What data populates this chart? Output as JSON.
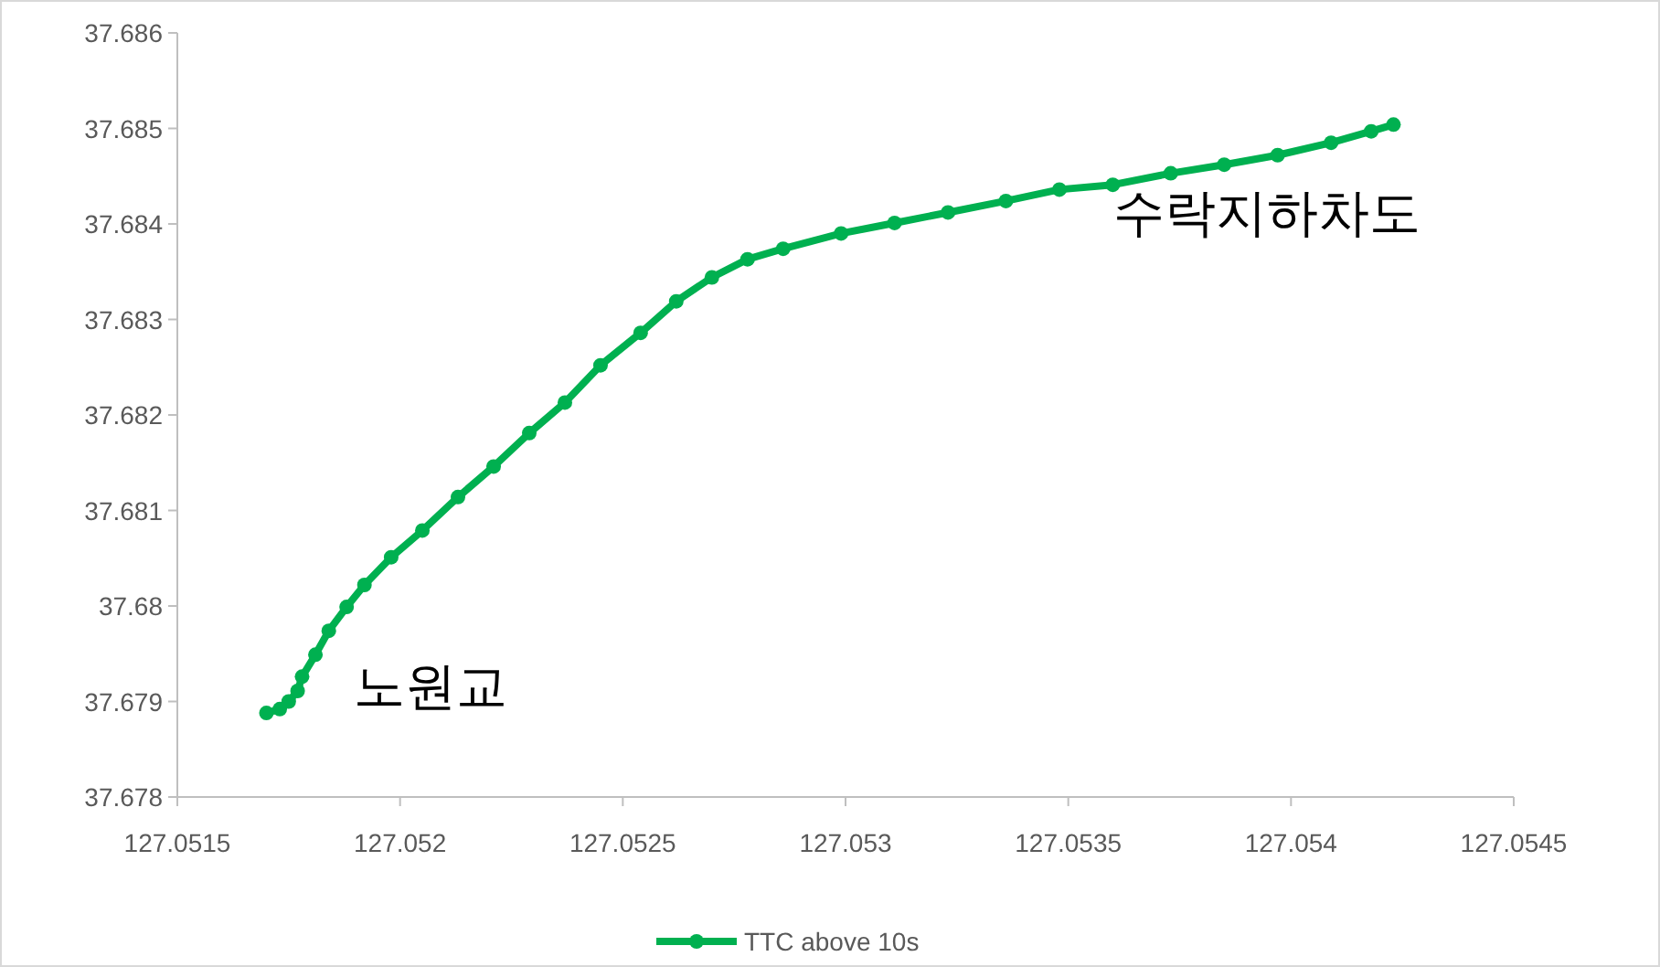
{
  "chart_data": {
    "type": "line",
    "x": [
      127.0517,
      127.05173,
      127.05175,
      127.05177,
      127.05178,
      127.05181,
      127.05184,
      127.05188,
      127.05192,
      127.05198,
      127.05205,
      127.05213,
      127.05221,
      127.05229,
      127.05237,
      127.05245,
      127.05254,
      127.05262,
      127.0527,
      127.05278,
      127.05286,
      127.05299,
      127.05311,
      127.05323,
      127.05336,
      127.05348,
      127.0536,
      127.05373,
      127.05385,
      127.05397,
      127.05409,
      127.05418,
      127.05423
    ],
    "series": [
      {
        "name": "TTC above 10s",
        "color": "#00b050",
        "values": [
          37.67888,
          37.67892,
          37.679,
          37.67911,
          37.67926,
          37.67949,
          37.67974,
          37.67999,
          37.68022,
          37.68051,
          37.68079,
          37.68114,
          37.68146,
          37.68181,
          37.68213,
          37.68252,
          37.68286,
          37.68319,
          37.68344,
          37.68363,
          37.68374,
          37.6839,
          37.68401,
          37.68412,
          37.68424,
          37.68436,
          37.68441,
          37.68453,
          37.68462,
          37.68472,
          37.68485,
          37.68497,
          37.68504
        ]
      }
    ],
    "xlim": [
      127.0515,
      127.0545
    ],
    "xticks": [
      127.0515,
      127.052,
      127.0525,
      127.053,
      127.0535,
      127.054,
      127.0545
    ],
    "ylim": [
      37.678,
      37.686
    ],
    "yticks": [
      37.678,
      37.679,
      37.68,
      37.681,
      37.682,
      37.683,
      37.684,
      37.685,
      37.686
    ],
    "annotations": [
      {
        "text": "노원교",
        "x": 127.0517,
        "y": 37.67888
      },
      {
        "text": "수락지하차도",
        "x": 127.05423,
        "y": 37.68504
      }
    ],
    "marker": "circle",
    "legend": "bottom",
    "grid": false
  }
}
